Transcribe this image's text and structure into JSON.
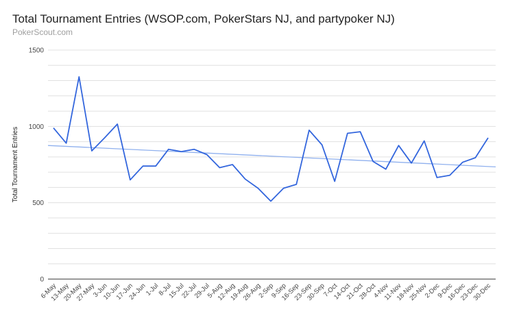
{
  "chart_data": {
    "type": "line",
    "title": "Total Tournament Entries (WSOP.com, PokerStars NJ, and partypoker NJ)",
    "subtitle": "PokerScout.com",
    "ylabel": "Total Tournament Entries",
    "xlabel": "",
    "ylim": [
      0,
      1500
    ],
    "yticks": [
      0,
      500,
      1000,
      1500
    ],
    "grid": true,
    "legend": "none",
    "categories": [
      "6-May",
      "13-May",
      "20-May",
      "27-May",
      "3-Jun",
      "10-Jun",
      "17-Jun",
      "24-Jun",
      "1-Jul",
      "8-Jul",
      "15-Jul",
      "22-Jul",
      "29-Jul",
      "5-Aug",
      "12-Aug",
      "19-Aug",
      "26-Aug",
      "2-Sep",
      "9-Sep",
      "16-Sep",
      "23-Sep",
      "30-Sep",
      "7-Oct",
      "14-Oct",
      "21-Oct",
      "28-Oct",
      "4-Nov",
      "11-Nov",
      "18-Nov",
      "25-Nov",
      "2-Dec",
      "9-Dec",
      "16-Dec",
      "23-Dec",
      "30-Dec"
    ],
    "series": [
      {
        "color": "#3366dd",
        "values": [
          990,
          890,
          1325,
          840,
          925,
          1015,
          650,
          740,
          740,
          850,
          835,
          850,
          815,
          730,
          750,
          655,
          595,
          510,
          595,
          620,
          975,
          880,
          640,
          955,
          965,
          770,
          720,
          875,
          760,
          905,
          665,
          680,
          765,
          795,
          925
        ]
      }
    ],
    "trendline": {
      "color": "#8fb0ee",
      "start": 875,
      "end": 735
    }
  }
}
